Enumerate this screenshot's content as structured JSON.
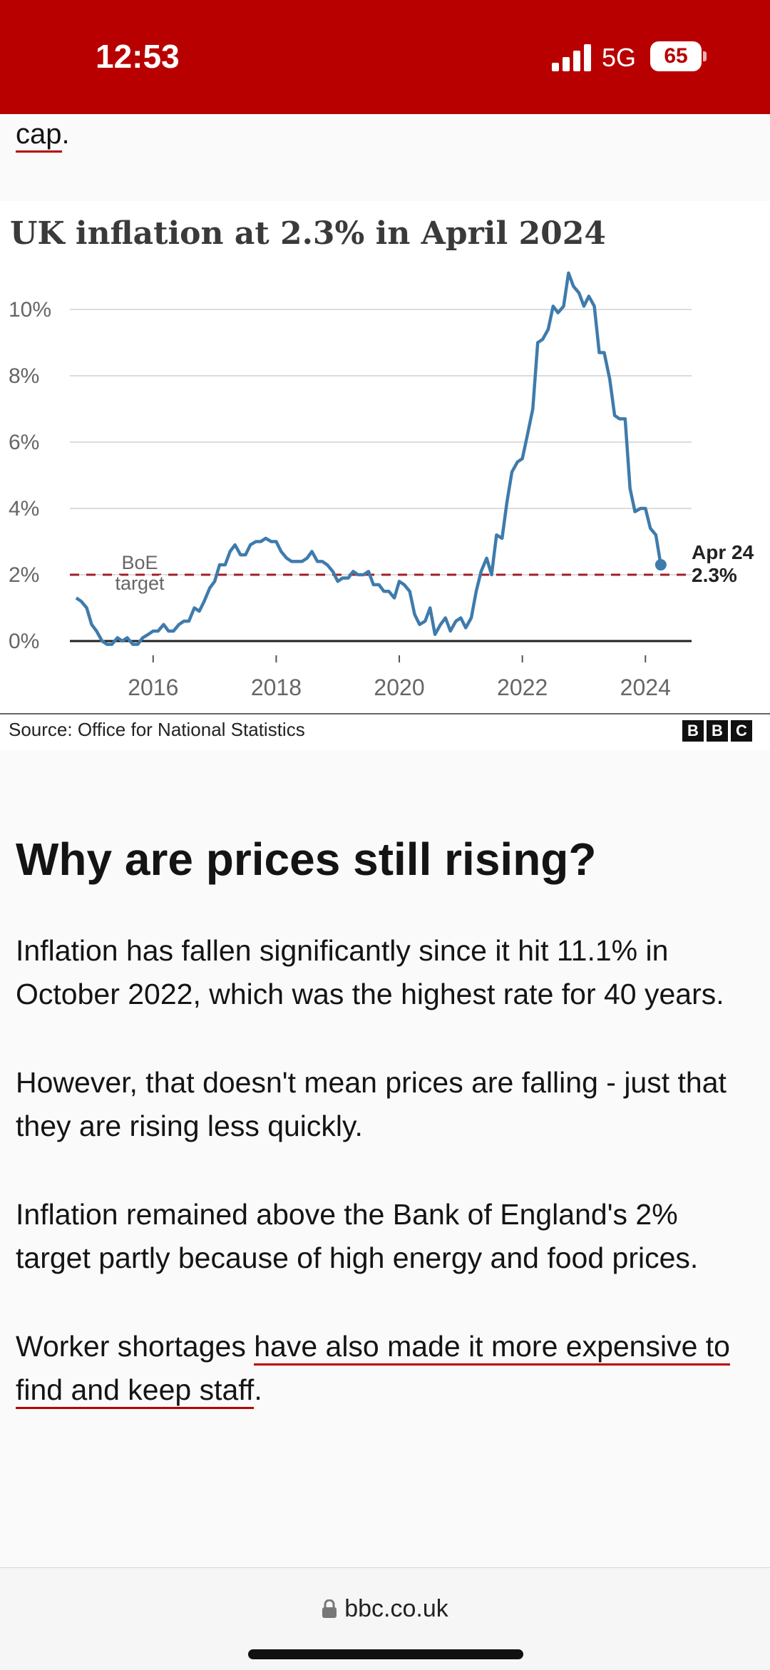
{
  "status_bar": {
    "time": "12:53",
    "network": "5G",
    "battery": "65",
    "background": "#b80000"
  },
  "prev_text": {
    "link": "cap",
    "suffix": "."
  },
  "chart_data": {
    "type": "line",
    "title": "UK inflation at 2.3% in April 2024",
    "y_ticks": [
      "0%",
      "2%",
      "4%",
      "6%",
      "8%",
      "10%"
    ],
    "x_ticks": [
      "2016",
      "2018",
      "2020",
      "2022",
      "2024"
    ],
    "ylim": [
      0,
      11.5
    ],
    "xlim": [
      2014.67,
      2024.75
    ],
    "grid": true,
    "series": [
      {
        "color": "#3f7bac",
        "points": [
          [
            2014.75,
            1.3
          ],
          [
            2014.83,
            1.2
          ],
          [
            2014.92,
            1.0
          ],
          [
            2015.0,
            0.5
          ],
          [
            2015.08,
            0.3
          ],
          [
            2015.17,
            0.0
          ],
          [
            2015.25,
            -0.1
          ],
          [
            2015.33,
            -0.1
          ],
          [
            2015.42,
            0.1
          ],
          [
            2015.5,
            0.0
          ],
          [
            2015.58,
            0.1
          ],
          [
            2015.67,
            -0.1
          ],
          [
            2015.75,
            -0.1
          ],
          [
            2015.83,
            0.1
          ],
          [
            2015.92,
            0.2
          ],
          [
            2016.0,
            0.3
          ],
          [
            2016.08,
            0.3
          ],
          [
            2016.17,
            0.5
          ],
          [
            2016.25,
            0.3
          ],
          [
            2016.33,
            0.3
          ],
          [
            2016.42,
            0.5
          ],
          [
            2016.5,
            0.6
          ],
          [
            2016.58,
            0.6
          ],
          [
            2016.67,
            1.0
          ],
          [
            2016.75,
            0.9
          ],
          [
            2016.83,
            1.2
          ],
          [
            2016.92,
            1.6
          ],
          [
            2017.0,
            1.8
          ],
          [
            2017.08,
            2.3
          ],
          [
            2017.17,
            2.3
          ],
          [
            2017.25,
            2.7
          ],
          [
            2017.33,
            2.9
          ],
          [
            2017.42,
            2.6
          ],
          [
            2017.5,
            2.6
          ],
          [
            2017.58,
            2.9
          ],
          [
            2017.67,
            3.0
          ],
          [
            2017.75,
            3.0
          ],
          [
            2017.83,
            3.1
          ],
          [
            2017.92,
            3.0
          ],
          [
            2018.0,
            3.0
          ],
          [
            2018.08,
            2.7
          ],
          [
            2018.17,
            2.5
          ],
          [
            2018.25,
            2.4
          ],
          [
            2018.33,
            2.4
          ],
          [
            2018.42,
            2.4
          ],
          [
            2018.5,
            2.5
          ],
          [
            2018.58,
            2.7
          ],
          [
            2018.67,
            2.4
          ],
          [
            2018.75,
            2.4
          ],
          [
            2018.83,
            2.3
          ],
          [
            2018.92,
            2.1
          ],
          [
            2019.0,
            1.8
          ],
          [
            2019.08,
            1.9
          ],
          [
            2019.17,
            1.9
          ],
          [
            2019.25,
            2.1
          ],
          [
            2019.33,
            2.0
          ],
          [
            2019.42,
            2.0
          ],
          [
            2019.5,
            2.1
          ],
          [
            2019.58,
            1.7
          ],
          [
            2019.67,
            1.7
          ],
          [
            2019.75,
            1.5
          ],
          [
            2019.83,
            1.5
          ],
          [
            2019.92,
            1.3
          ],
          [
            2020.0,
            1.8
          ],
          [
            2020.08,
            1.7
          ],
          [
            2020.17,
            1.5
          ],
          [
            2020.25,
            0.8
          ],
          [
            2020.33,
            0.5
          ],
          [
            2020.42,
            0.6
          ],
          [
            2020.5,
            1.0
          ],
          [
            2020.58,
            0.2
          ],
          [
            2020.67,
            0.5
          ],
          [
            2020.75,
            0.7
          ],
          [
            2020.83,
            0.3
          ],
          [
            2020.92,
            0.6
          ],
          [
            2021.0,
            0.7
          ],
          [
            2021.08,
            0.4
          ],
          [
            2021.17,
            0.7
          ],
          [
            2021.25,
            1.5
          ],
          [
            2021.33,
            2.1
          ],
          [
            2021.42,
            2.5
          ],
          [
            2021.5,
            2.0
          ],
          [
            2021.58,
            3.2
          ],
          [
            2021.67,
            3.1
          ],
          [
            2021.75,
            4.2
          ],
          [
            2021.83,
            5.1
          ],
          [
            2021.92,
            5.4
          ],
          [
            2022.0,
            5.5
          ],
          [
            2022.08,
            6.2
          ],
          [
            2022.17,
            7.0
          ],
          [
            2022.25,
            9.0
          ],
          [
            2022.33,
            9.1
          ],
          [
            2022.42,
            9.4
          ],
          [
            2022.5,
            10.1
          ],
          [
            2022.58,
            9.9
          ],
          [
            2022.67,
            10.1
          ],
          [
            2022.75,
            11.1
          ],
          [
            2022.83,
            10.7
          ],
          [
            2022.92,
            10.5
          ],
          [
            2023.0,
            10.1
          ],
          [
            2023.08,
            10.4
          ],
          [
            2023.17,
            10.1
          ],
          [
            2023.25,
            8.7
          ],
          [
            2023.33,
            8.7
          ],
          [
            2023.42,
            7.9
          ],
          [
            2023.5,
            6.8
          ],
          [
            2023.58,
            6.7
          ],
          [
            2023.67,
            6.7
          ],
          [
            2023.75,
            4.6
          ],
          [
            2023.83,
            3.9
          ],
          [
            2023.92,
            4.0
          ],
          [
            2024.0,
            4.0
          ],
          [
            2024.08,
            3.4
          ],
          [
            2024.17,
            3.2
          ],
          [
            2024.25,
            2.3
          ]
        ]
      }
    ],
    "reference_line": {
      "value": 2.0,
      "label_line1": "BoE",
      "label_line2": "target",
      "color": "#a0202a"
    },
    "end_annotation": {
      "label_line1": "Apr 24",
      "label_line2": "2.3%"
    },
    "source": "Source: Office for National Statistics",
    "logo_letters": [
      "B",
      "B",
      "C"
    ]
  },
  "article": {
    "heading": "Why are prices still rising?",
    "paragraphs": {
      "p1": "Inflation has fallen significantly since it hit 11.1% in October 2022, which was the highest rate for 40 years.",
      "p2": "However, that doesn't mean prices are falling - just that they are rising less quickly.",
      "p3": "Inflation remained above the Bank of England's 2% target partly because of high energy and food prices.",
      "p4_prefix": "Worker shortages ",
      "p4_link": "have also made it more expensive to find and keep staff",
      "p4_suffix": "."
    }
  },
  "browser": {
    "url": "bbc.co.uk",
    "lock_icon": "lock-icon"
  }
}
